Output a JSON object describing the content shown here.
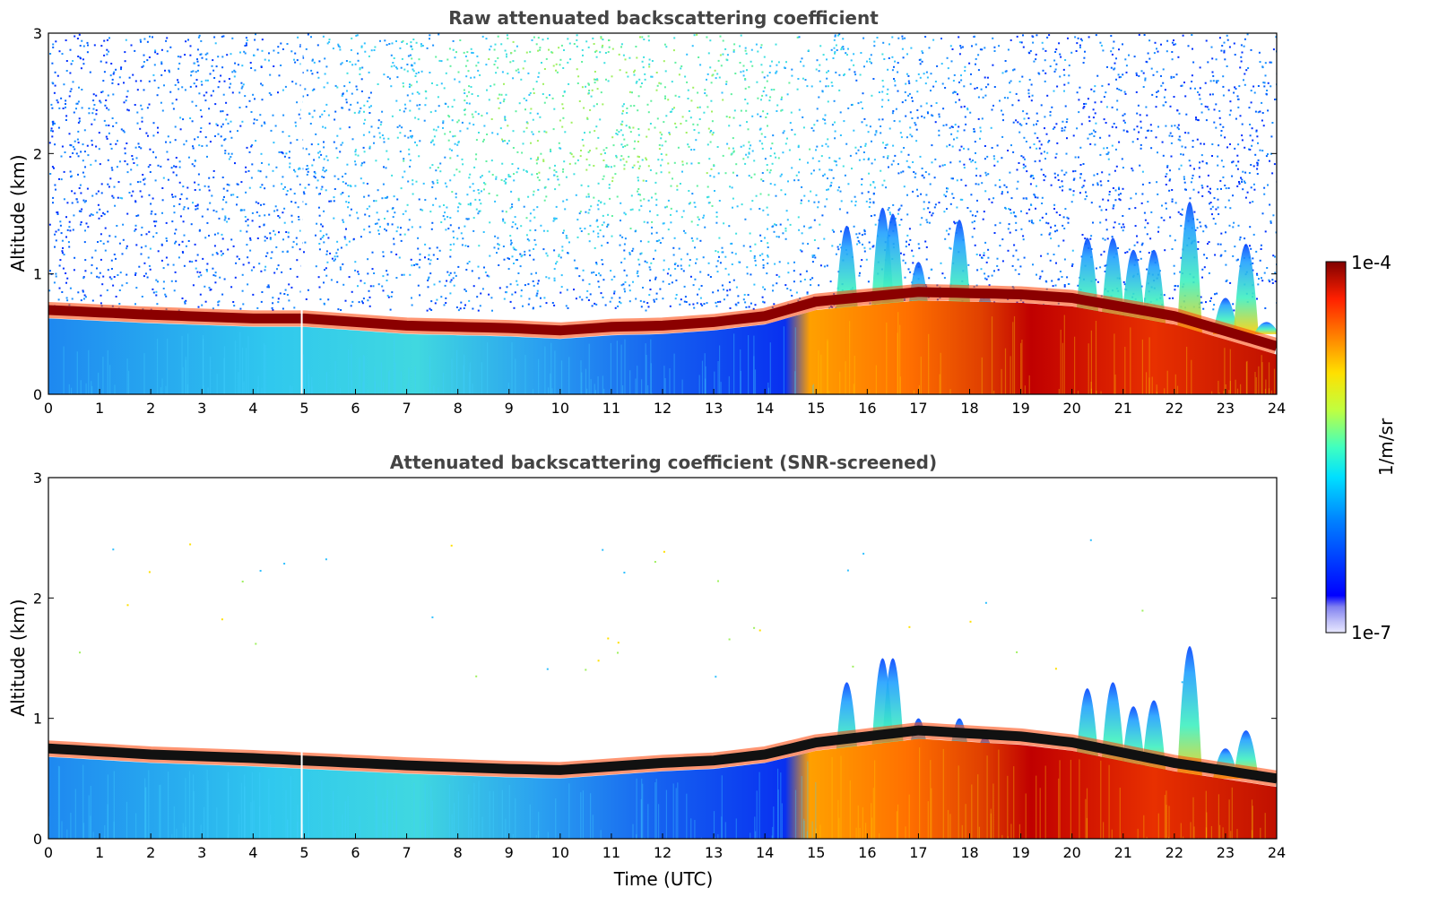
{
  "chart_data": [
    {
      "type": "heatmap",
      "title": "Raw attenuated backscattering coefficient",
      "xlabel": "",
      "ylabel": "Altitude (km)",
      "xlim": [
        0,
        24
      ],
      "ylim": [
        0,
        3
      ],
      "x_ticks": [
        "0",
        "1",
        "2",
        "3",
        "4",
        "5",
        "6",
        "7",
        "8",
        "9",
        "10",
        "11",
        "12",
        "13",
        "14",
        "15",
        "16",
        "17",
        "18",
        "19",
        "20",
        "21",
        "22",
        "23",
        "24"
      ],
      "y_ticks": [
        "0",
        "1",
        "2",
        "3"
      ],
      "grid": false,
      "layer_top": [
        [
          0,
          0.75
        ],
        [
          2,
          0.71
        ],
        [
          4,
          0.68
        ],
        [
          5,
          0.68
        ],
        [
          7,
          0.62
        ],
        [
          9,
          0.6
        ],
        [
          10,
          0.58
        ],
        [
          11,
          0.61
        ],
        [
          12,
          0.62
        ],
        [
          13,
          0.65
        ],
        [
          14,
          0.7
        ],
        [
          15,
          0.82
        ],
        [
          17,
          0.9
        ],
        [
          19,
          0.88
        ],
        [
          20,
          0.85
        ],
        [
          22,
          0.7
        ],
        [
          24,
          0.45
        ]
      ],
      "cloud_plumes": [
        [
          15.6,
          1.4
        ],
        [
          16.3,
          1.55
        ],
        [
          16.5,
          1.5
        ],
        [
          17.0,
          1.1
        ],
        [
          17.8,
          1.45
        ],
        [
          18.3,
          0.85
        ],
        [
          20.3,
          1.3
        ],
        [
          20.8,
          1.3
        ],
        [
          21.2,
          1.2
        ],
        [
          21.6,
          1.2
        ],
        [
          22.3,
          1.6
        ],
        [
          23.0,
          0.8
        ],
        [
          23.4,
          1.25
        ],
        [
          23.8,
          0.6
        ]
      ],
      "noise_level": "high"
    },
    {
      "type": "heatmap",
      "title": "Attenuated backscattering coefficient (SNR-screened)",
      "xlabel": "Time (UTC)",
      "ylabel": "Altitude (km)",
      "xlim": [
        0,
        24
      ],
      "ylim": [
        0,
        3
      ],
      "x_ticks": [
        "0",
        "1",
        "2",
        "3",
        "4",
        "5",
        "6",
        "7",
        "8",
        "9",
        "10",
        "11",
        "12",
        "13",
        "14",
        "15",
        "16",
        "17",
        "18",
        "19",
        "20",
        "21",
        "22",
        "23",
        "24"
      ],
      "y_ticks": [
        "0",
        "1",
        "2",
        "3"
      ],
      "grid": false,
      "layer_top": [
        [
          0,
          0.8
        ],
        [
          2,
          0.75
        ],
        [
          4,
          0.72
        ],
        [
          5,
          0.7
        ],
        [
          7,
          0.66
        ],
        [
          9,
          0.63
        ],
        [
          10,
          0.62
        ],
        [
          11,
          0.65
        ],
        [
          12,
          0.68
        ],
        [
          13,
          0.7
        ],
        [
          14,
          0.75
        ],
        [
          15,
          0.85
        ],
        [
          17,
          0.95
        ],
        [
          19,
          0.9
        ],
        [
          20,
          0.85
        ],
        [
          22,
          0.68
        ],
        [
          24,
          0.55
        ]
      ],
      "cloud_plumes": [
        [
          15.6,
          1.3
        ],
        [
          16.3,
          1.5
        ],
        [
          16.5,
          1.5
        ],
        [
          17.0,
          1.0
        ],
        [
          17.8,
          1.0
        ],
        [
          18.3,
          0.85
        ],
        [
          20.3,
          1.25
        ],
        [
          20.8,
          1.3
        ],
        [
          21.2,
          1.1
        ],
        [
          21.6,
          1.15
        ],
        [
          22.3,
          1.6
        ],
        [
          23.0,
          0.75
        ],
        [
          23.4,
          0.9
        ],
        [
          23.8,
          0.55
        ]
      ],
      "noise_level": "screened"
    }
  ],
  "colorbar": {
    "label": "1/m/sr",
    "max_label": "1e-4",
    "min_label": "1e-7",
    "colormap": "jet",
    "scale": "log"
  }
}
